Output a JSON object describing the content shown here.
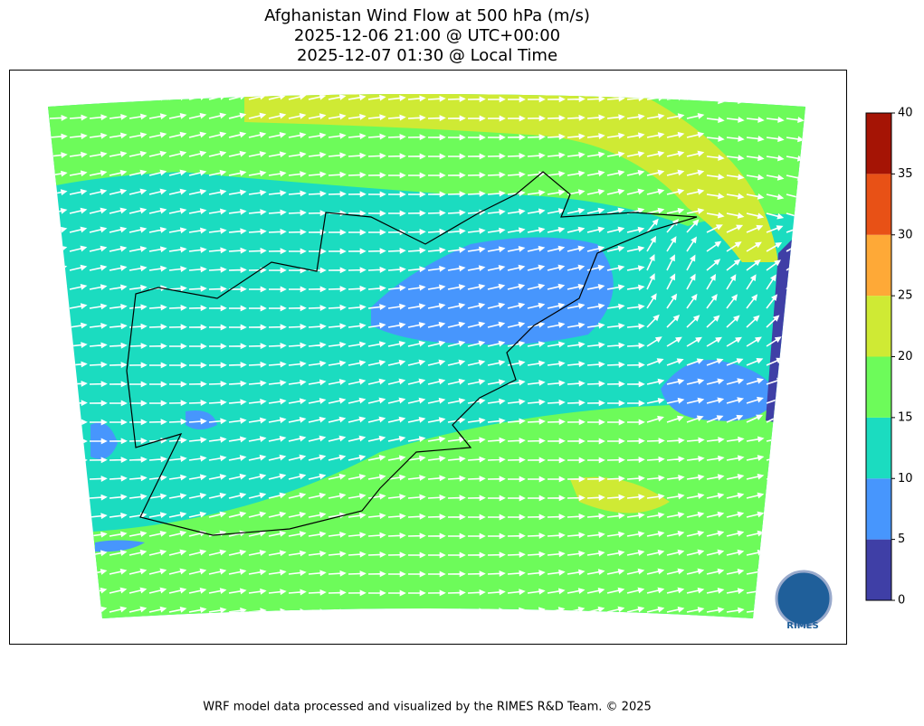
{
  "title": [
    "Afghanistan Wind Flow at 500 hPa (m/s)",
    "2025-12-06 21:00 @ UTC+00:00",
    "2025-12-07 01:30 @ Local Time"
  ],
  "colorbar": {
    "lim": [
      0,
      40
    ],
    "ticks": [
      0,
      5,
      10,
      15,
      20,
      25,
      30,
      35,
      40
    ],
    "colors": [
      "#3f3fa6",
      "#4796fd",
      "#1bdcc0",
      "#6dfb5a",
      "#cfea34",
      "#fea937",
      "#e85116",
      "#a51405"
    ]
  },
  "logo": "RIMES",
  "footer": "WRF model data processed and visualized by the RIMES R&D Team. © 2025"
}
